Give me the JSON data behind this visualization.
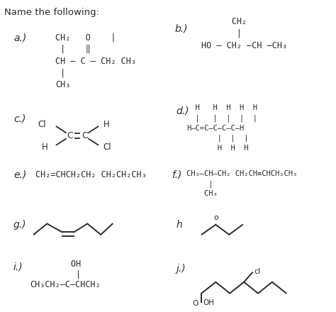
{
  "title": "Name the following:",
  "bg": "#ffffff",
  "tc": "#2a2a2a",
  "a_label": "a.)",
  "a_line1": "CH₂   O    |",
  "a_line2": " |    ‖",
  "a_line3": "CH – C – CH₂ CH₃",
  "a_line4": " |",
  "a_line5": "CH₃",
  "b_label": "b.)",
  "b_line0": "      CH₂",
  "b_line1": "       |",
  "b_line2": "HO – CH₂ –CH –CH₃",
  "c_label": "c.)",
  "c_cl1": "Cl",
  "c_h1": "H",
  "c_h2": "H",
  "c_cl2": "Cl",
  "d_label": "d.)",
  "d_l0": "  H   H  H  H  H",
  "d_l1": "  |   |  |  |  |",
  "d_l2": "H–C=C–C–C–C–H",
  "d_l3": "       |  |  |",
  "d_l4": "       H  H  H",
  "e_label": "e.)",
  "e_line": "CH₂=CHCH₂CH₂ CH₂CH₂CH₃",
  "f_label": "f.)",
  "f_line1": "CH₃–CH–CH₂ CH₂CH≡CHCH₂CH₃",
  "f_line2": "     |",
  "f_line3": "    CH₃",
  "g_label": "g.)",
  "h_label": "h",
  "h_o": "o",
  "i_label": "i.)",
  "i_line1": "        OH",
  "i_line2": "         |",
  "i_line3": "CH₃CH₂–C–CHCH₂",
  "j_label": "j.)",
  "j_cl": "cl",
  "j_o": "O",
  "j_oh": "OH"
}
